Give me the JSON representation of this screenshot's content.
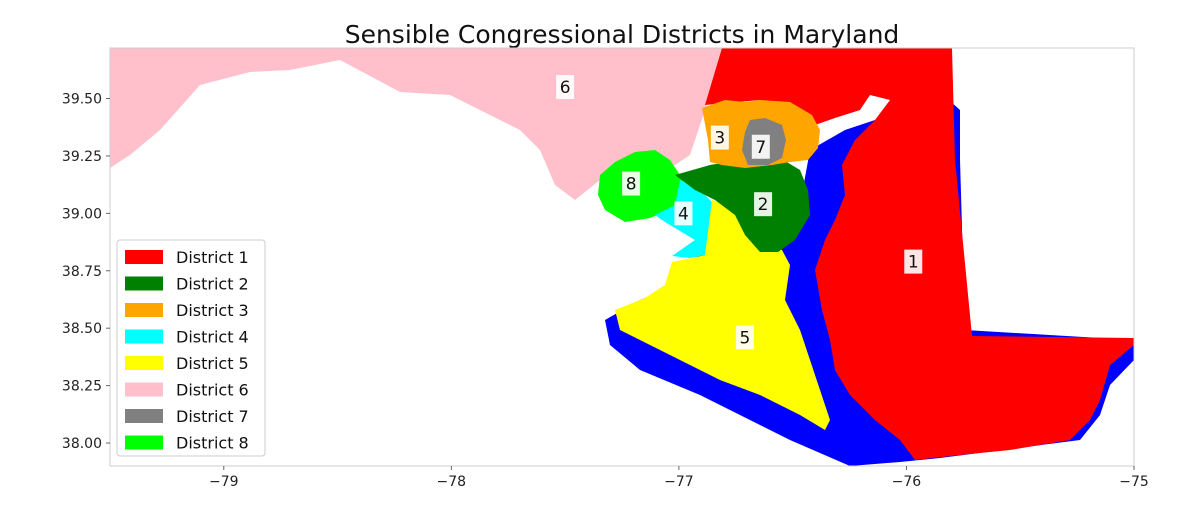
{
  "title": "Sensible Congressional Districts in Maryland",
  "axes": {
    "xlim": [
      -79.5,
      -75.0
    ],
    "ylim": [
      37.9,
      39.72
    ],
    "xticks": [
      {
        "value": -79,
        "label": "−79"
      },
      {
        "value": -78,
        "label": "−78"
      },
      {
        "value": -77,
        "label": "−77"
      },
      {
        "value": -76,
        "label": "−76"
      },
      {
        "value": -75,
        "label": "−75"
      }
    ],
    "yticks": [
      {
        "value": 38.0,
        "label": "38.00"
      },
      {
        "value": 38.25,
        "label": "38.25"
      },
      {
        "value": 38.5,
        "label": "38.50"
      },
      {
        "value": 38.75,
        "label": "38.75"
      },
      {
        "value": 39.0,
        "label": "39.00"
      },
      {
        "value": 39.25,
        "label": "39.25"
      },
      {
        "value": 39.5,
        "label": "39.50"
      }
    ]
  },
  "water_color": "#0000ff",
  "districts": [
    {
      "id": "1",
      "name": "District 1",
      "color": "#ff0000",
      "label_pos": [
        -75.97,
        38.79
      ]
    },
    {
      "id": "2",
      "name": "District 2",
      "color": "#008000",
      "label_pos": [
        -76.63,
        39.04
      ]
    },
    {
      "id": "3",
      "name": "District 3",
      "color": "#ffa500",
      "label_pos": [
        -76.82,
        39.33
      ]
    },
    {
      "id": "4",
      "name": "District 4",
      "color": "#00ffff",
      "label_pos": [
        -76.98,
        39.0
      ]
    },
    {
      "id": "5",
      "name": "District 5",
      "color": "#ffff00",
      "label_pos": [
        -76.71,
        38.46
      ]
    },
    {
      "id": "6",
      "name": "District 6",
      "color": "#ffc0cb",
      "label_pos": [
        -77.5,
        39.55
      ]
    },
    {
      "id": "7",
      "name": "District 7",
      "color": "#808080",
      "label_pos": [
        -76.64,
        39.29
      ]
    },
    {
      "id": "8",
      "name": "District 8",
      "color": "#00ff00",
      "label_pos": [
        -77.21,
        39.13
      ]
    }
  ]
}
